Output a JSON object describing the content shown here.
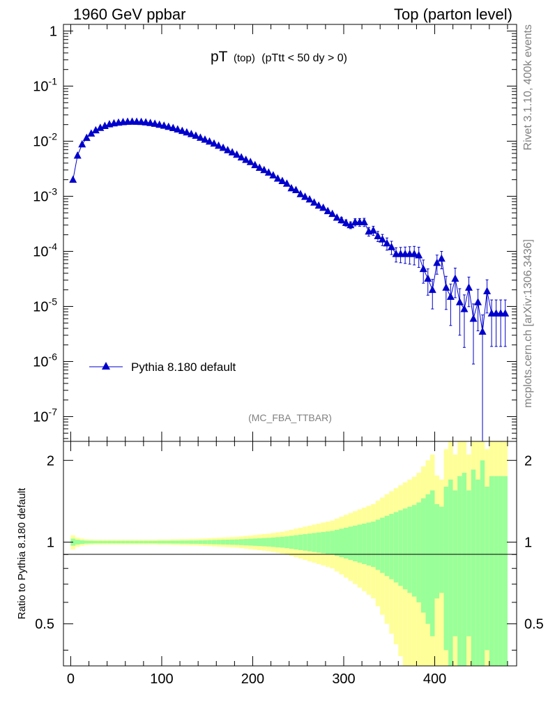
{
  "header": {
    "left": "1960 GeV ppbar",
    "right": "Top (parton level)"
  },
  "side": {
    "rivet": "Rivet 3.1.10,  400k events",
    "mcplots": "mcplots.cern.ch [arXiv:1306.3436]"
  },
  "chart_data": {
    "type": "line",
    "title_main": "pT",
    "title_sub": "(top)",
    "title_cut": "(pTtt < 50 dy > 0)",
    "analysis": "(MC_FBA_TTBAR)",
    "legend": "Pythia 8.180 default",
    "ratio_ylabel": "Ratio to Pythia 8.180 default",
    "x_ticks": [
      "0",
      "100",
      "200",
      "300",
      "400"
    ],
    "y_ticks": [
      "1",
      "10^-1",
      "10^-2",
      "10^-3",
      "10^-4",
      "10^-5",
      "10^-6",
      "10^-7"
    ],
    "ratio_ticks": [
      "0.5",
      "1",
      "2"
    ],
    "xlim": [
      -8,
      490
    ],
    "ylim_log10": [
      -7.45,
      0.12
    ],
    "ratio_ylim": [
      0.35,
      2.35
    ],
    "series": [
      {
        "name": "Pythia 8.180 default",
        "color": "#0000cc",
        "x": [
          2.5,
          7.5,
          12.5,
          17.5,
          22.5,
          27.5,
          32.5,
          37.5,
          42.5,
          47.5,
          52.5,
          57.5,
          62.5,
          67.5,
          72.5,
          77.5,
          82.5,
          87.5,
          92.5,
          97.5,
          102.5,
          107.5,
          112.5,
          117.5,
          122.5,
          127.5,
          132.5,
          137.5,
          142.5,
          147.5,
          152.5,
          157.5,
          162.5,
          167.5,
          172.5,
          177.5,
          182.5,
          187.5,
          192.5,
          197.5,
          202.5,
          207.5,
          212.5,
          217.5,
          222.5,
          227.5,
          232.5,
          237.5,
          242.5,
          247.5,
          252.5,
          257.5,
          262.5,
          267.5,
          272.5,
          277.5,
          282.5,
          287.5,
          292.5,
          297.5,
          302.5,
          307.5,
          312.5,
          317.5,
          322.5,
          327.5,
          332.5,
          337.5,
          342.5,
          347.5,
          352.5,
          357.5,
          362.5,
          367.5,
          372.5,
          377.5,
          382.5,
          387.5,
          392.5,
          397.5,
          402.5,
          407.5,
          412.5,
          417.5,
          422.5,
          427.5,
          432.5,
          437.5,
          442.5,
          447.5,
          452.5,
          457.5,
          462.5,
          467.5,
          472.5,
          477.5
        ],
        "y": [
          0.002,
          0.0055,
          0.0088,
          0.0115,
          0.0138,
          0.0158,
          0.0175,
          0.019,
          0.0203,
          0.0212,
          0.0218,
          0.0223,
          0.0226,
          0.0227,
          0.0226,
          0.0224,
          0.022,
          0.0215,
          0.0208,
          0.02,
          0.0192,
          0.0183,
          0.0174,
          0.0164,
          0.0154,
          0.0145,
          0.0135,
          0.0126,
          0.0116,
          0.0107,
          0.0099,
          0.0091,
          0.0083,
          0.0076,
          0.0069,
          0.0063,
          0.0057,
          0.0051,
          0.0046,
          0.0042,
          0.0037,
          0.0033,
          0.003,
          0.0027,
          0.0024,
          0.0021,
          0.0019,
          0.0017,
          0.0014,
          0.0013,
          0.0011,
          0.00098,
          0.00088,
          0.00077,
          0.00068,
          0.00062,
          0.00054,
          0.00048,
          0.00041,
          0.00037,
          0.00033,
          0.0003,
          0.00034,
          0.00034,
          0.00034,
          0.00023,
          0.00024,
          0.00019,
          0.000165,
          0.00014,
          0.00012,
          9e-05,
          9e-05,
          9e-05,
          9e-05,
          9e-05,
          8.5e-05,
          4.8e-05,
          3.2e-05,
          2e-05,
          6.2e-05,
          7.4e-05,
          2.2e-05,
          1.5e-05,
          3.2e-05,
          1.2e-05,
          9e-06,
          2.2e-05,
          6e-06,
          1.2e-05,
          3.5e-06,
          1.9e-05,
          7.5e-06,
          7.5e-06,
          7.5e-06,
          7.5e-06
        ],
        "yerr_rel": [
          0.03,
          0.02,
          0.015,
          0.012,
          0.011,
          0.01,
          0.01,
          0.01,
          0.01,
          0.01,
          0.01,
          0.01,
          0.01,
          0.01,
          0.01,
          0.01,
          0.01,
          0.01,
          0.01,
          0.011,
          0.011,
          0.011,
          0.012,
          0.012,
          0.013,
          0.013,
          0.014,
          0.014,
          0.015,
          0.016,
          0.017,
          0.018,
          0.019,
          0.02,
          0.021,
          0.022,
          0.023,
          0.025,
          0.027,
          0.029,
          0.031,
          0.033,
          0.035,
          0.037,
          0.04,
          0.043,
          0.046,
          0.05,
          0.055,
          0.06,
          0.065,
          0.07,
          0.075,
          0.08,
          0.085,
          0.09,
          0.095,
          0.1,
          0.11,
          0.12,
          0.13,
          0.14,
          0.15,
          0.16,
          0.17,
          0.18,
          0.19,
          0.21,
          0.23,
          0.25,
          0.27,
          0.29,
          0.31,
          0.33,
          0.35,
          0.37,
          0.4,
          0.45,
          0.5,
          0.55,
          0.38,
          0.35,
          0.6,
          0.7,
          0.55,
          0.75,
          0.8,
          0.55,
          0.85,
          0.7,
          1.0,
          0.6,
          0.75,
          0.75,
          0.75,
          0.75
        ]
      }
    ]
  }
}
